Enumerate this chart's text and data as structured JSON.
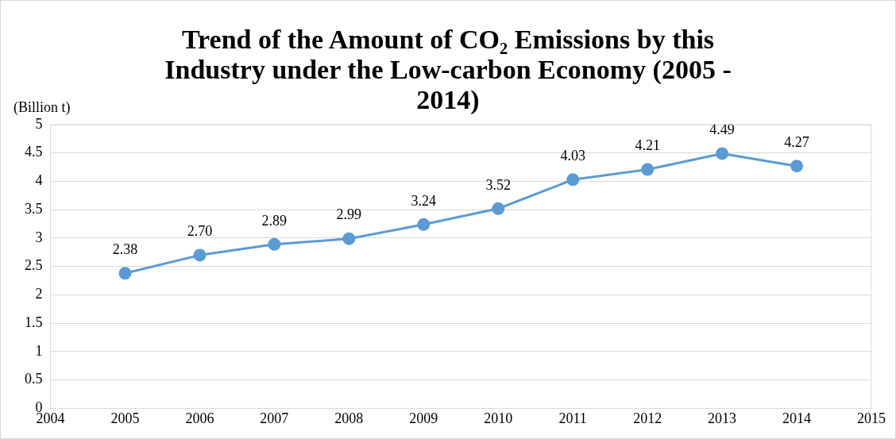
{
  "chart_data": {
    "type": "line",
    "title": "Trend of the Amount of CO₂ Emissions by this Industry under the Low-carbon Economy (2005 - 2014)",
    "ylabel": "(Billion t)",
    "x": [
      2005,
      2006,
      2007,
      2008,
      2009,
      2010,
      2011,
      2012,
      2013,
      2014
    ],
    "series": [
      {
        "color": "#5b9bd5",
        "values": [
          2.38,
          2.7,
          2.89,
          2.99,
          3.24,
          3.52,
          4.03,
          4.21,
          4.49,
          4.27
        ],
        "value_labels": [
          "2.38",
          "2.70",
          "2.89",
          "2.99",
          "3.24",
          "3.52",
          "4.03",
          "4.21",
          "4.49",
          "4.27"
        ]
      }
    ],
    "xlim": [
      2004,
      2015
    ],
    "xticks": [
      2004,
      2005,
      2006,
      2007,
      2008,
      2009,
      2010,
      2011,
      2012,
      2013,
      2014,
      2015
    ],
    "ylim": [
      0,
      5
    ],
    "yticks": [
      0,
      0.5,
      1,
      1.5,
      2,
      2.5,
      3,
      3.5,
      4,
      4.5,
      5
    ],
    "grid": "y",
    "legend": false,
    "marker": "circle",
    "line_style": "solid"
  }
}
